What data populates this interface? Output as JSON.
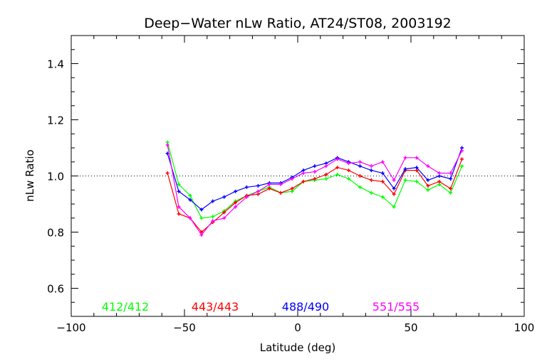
{
  "chart_data": {
    "type": "line",
    "title": "Deep−Water nLw Ratio, AT24/ST08, 2003192",
    "xlabel": "Latitude (deg)",
    "ylabel": "nLw Ratio",
    "xlim": [
      -100,
      100
    ],
    "ylim": [
      0.5,
      1.5
    ],
    "xticks": [
      -100,
      -50,
      0,
      50,
      100
    ],
    "xtick_labels": [
      "−100",
      "−50",
      "0",
      "50",
      "100"
    ],
    "yticks": [
      0.6,
      0.8,
      1.0,
      1.2,
      1.4
    ],
    "ytick_labels": [
      "0.6",
      "0.8",
      "1.0",
      "1.2",
      "1.4"
    ],
    "reference_line": 1.0,
    "legend_placement": "bottom",
    "x": [
      -57.5,
      -52.5,
      -47.5,
      -42.5,
      -37.5,
      -32.5,
      -27.5,
      -22.5,
      -17.5,
      -12.5,
      -7.5,
      -2.5,
      2.5,
      7.5,
      12.5,
      17.5,
      22.5,
      27.5,
      32.5,
      37.5,
      42.5,
      47.5,
      52.5,
      57.5,
      62.5,
      67.5,
      72.5
    ],
    "series": [
      {
        "name": "412/412",
        "color": "#00ff00",
        "values": [
          1.12,
          0.97,
          0.93,
          0.85,
          0.855,
          0.875,
          0.91,
          0.93,
          0.945,
          0.96,
          0.94,
          0.945,
          0.98,
          0.985,
          0.99,
          1.005,
          0.99,
          0.96,
          0.94,
          0.925,
          0.89,
          0.985,
          0.98,
          0.95,
          0.97,
          0.94,
          1.035
        ]
      },
      {
        "name": "443/443",
        "color": "#ff0000",
        "values": [
          1.01,
          0.865,
          0.85,
          0.8,
          0.835,
          0.87,
          0.905,
          0.93,
          0.935,
          0.955,
          0.94,
          0.955,
          0.98,
          0.99,
          1.005,
          1.03,
          1.02,
          1.0,
          0.985,
          0.98,
          0.935,
          1.02,
          1.02,
          0.965,
          0.98,
          0.955,
          1.06
        ]
      },
      {
        "name": "488/490",
        "color": "#0000ff",
        "values": [
          1.08,
          0.945,
          0.915,
          0.88,
          0.91,
          0.925,
          0.945,
          0.96,
          0.965,
          0.975,
          0.975,
          0.995,
          1.02,
          1.035,
          1.045,
          1.065,
          1.05,
          1.035,
          1.02,
          1.01,
          0.955,
          1.025,
          1.03,
          0.985,
          1.0,
          0.99,
          1.1
        ]
      },
      {
        "name": "551/555",
        "color": "#ff00ff",
        "values": [
          1.11,
          0.89,
          0.85,
          0.79,
          0.84,
          0.85,
          0.89,
          0.925,
          0.945,
          0.97,
          0.97,
          0.99,
          1.01,
          1.015,
          1.035,
          1.06,
          1.045,
          1.05,
          1.035,
          1.05,
          0.985,
          1.065,
          1.065,
          1.035,
          1.01,
          1.01,
          1.09
        ]
      }
    ]
  }
}
